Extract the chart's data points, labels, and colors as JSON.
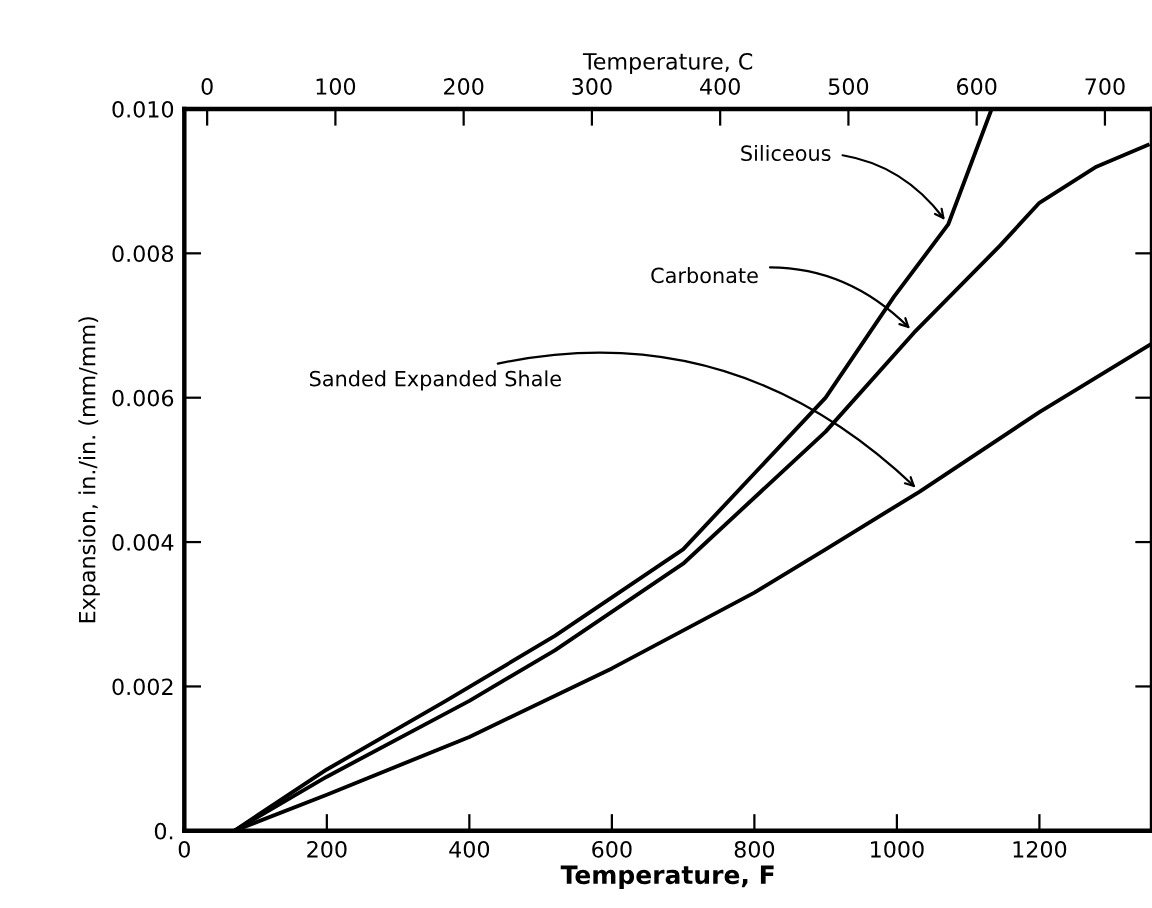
{
  "chart_data": {
    "type": "line",
    "xlabel": "Temperature, F",
    "x2label": "Temperature, C",
    "ylabel": "Expansion, in./in. (mm/mm)",
    "xlim": [
      0,
      1358
    ],
    "xticks": [
      0,
      200,
      400,
      600,
      800,
      1000,
      1200
    ],
    "x2lim": [
      -17.8,
      736.7
    ],
    "x2ticks": [
      0,
      100,
      200,
      300,
      400,
      500,
      600,
      700
    ],
    "ylim": [
      0,
      0.01
    ],
    "yticks": [
      {
        "value": 0,
        "label": "0."
      },
      0.002,
      0.004,
      0.006,
      0.008,
      {
        "value": 0.01,
        "label": "0.010"
      }
    ],
    "grid": false,
    "legend": false,
    "marker": "none",
    "line_style": "solid",
    "series": [
      {
        "color": "#000000",
        "x": [
          70,
          200,
          367,
          520,
          700,
          900,
          996,
          1072,
          1133
        ],
        "values": [
          0,
          0.00085,
          0.0018,
          0.0027,
          0.0039,
          0.006,
          0.0074,
          0.0084,
          0.01
        ]
      },
      {
        "color": "#000000",
        "x": [
          70,
          200,
          400,
          520,
          700,
          900,
          1024,
          1144,
          1200,
          1280,
          1352
        ],
        "values": [
          0,
          0.00075,
          0.0018,
          0.0025,
          0.0037,
          0.00553,
          0.0069,
          0.0081,
          0.0087,
          0.0092,
          0.0095
        ]
      },
      {
        "color": "#000000",
        "x": [
          70,
          200,
          400,
          600,
          800,
          900,
          1032,
          1200,
          1358
        ],
        "values": [
          0,
          0.0005,
          0.0013,
          0.00225,
          0.0033,
          0.0039,
          0.0047,
          0.0058,
          0.00675
        ]
      }
    ],
    "annotations": [
      {
        "text": "Siliceous",
        "x": 1072,
        "y": 0.0084
      },
      {
        "text": "Carbonate",
        "x": 1024,
        "y": 0.0069
      },
      {
        "text": "Sanded Expanded Shale",
        "x": 1032,
        "y": 0.0047
      }
    ]
  }
}
